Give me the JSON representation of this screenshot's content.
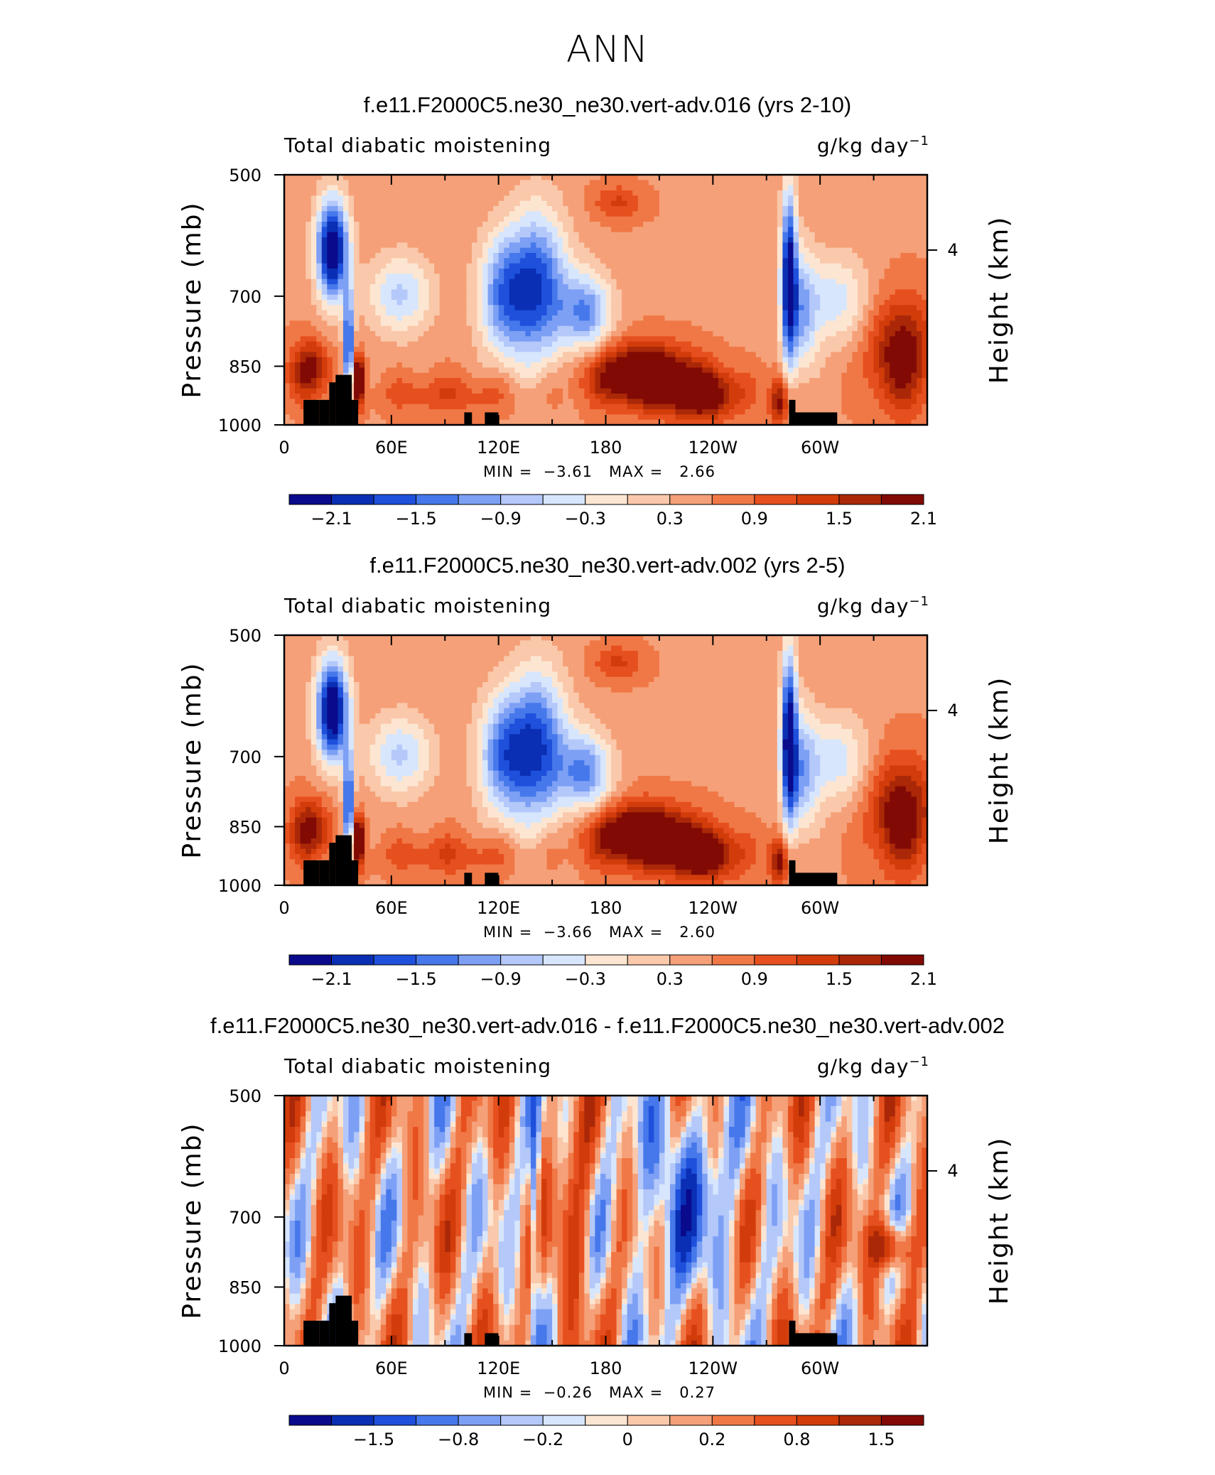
{
  "title": "ANN",
  "chart_data": [
    {
      "type": "heatmap",
      "title": "f.e11.F2000C5.ne30_ne30.vert-adv.016 (yrs 2-10)",
      "left_string": "Total diabatic moistening",
      "units": "g/kg day",
      "units_exp": "−1",
      "ylabel": "Pressure  (mb)",
      "ylabel_right": "Height  (km)",
      "x_ticks": [
        "0",
        "60E",
        "120E",
        "180",
        "120W",
        "60W"
      ],
      "y_ticks": [
        "500",
        "700",
        "850",
        "1000"
      ],
      "y_right_ticks": [
        "4"
      ],
      "min_label": "MIN =",
      "min_value": "−3.61",
      "max_label": "MAX =",
      "max_value": "2.66",
      "colorbar_labels": [
        "−2.1",
        "−1.5",
        "−0.9",
        "−0.3",
        "0.3",
        "0.9",
        "1.5",
        "2.1"
      ],
      "colorbar_colors": [
        "#0a0a8c",
        "#0a2fb4",
        "#1e50dc",
        "#4678eb",
        "#7da0f5",
        "#b4c8fa",
        "#d7e6fc",
        "#fce6d2",
        "#fac8aa",
        "#f5a078",
        "#f07846",
        "#e6501e",
        "#d23c0a",
        "#aa2808",
        "#820a05"
      ]
    },
    {
      "type": "heatmap",
      "title": "f.e11.F2000C5.ne30_ne30.vert-adv.002 (yrs 2-5)",
      "left_string": "Total diabatic moistening",
      "units": "g/kg day",
      "units_exp": "−1",
      "ylabel": "Pressure  (mb)",
      "ylabel_right": "Height  (km)",
      "x_ticks": [
        "0",
        "60E",
        "120E",
        "180",
        "120W",
        "60W"
      ],
      "y_ticks": [
        "500",
        "700",
        "850",
        "1000"
      ],
      "y_right_ticks": [
        "4"
      ],
      "min_label": "MIN =",
      "min_value": "−3.66",
      "max_label": "MAX =",
      "max_value": "2.60",
      "colorbar_labels": [
        "−2.1",
        "−1.5",
        "−0.9",
        "−0.3",
        "0.3",
        "0.9",
        "1.5",
        "2.1"
      ],
      "colorbar_colors": [
        "#0a0a8c",
        "#0a2fb4",
        "#1e50dc",
        "#4678eb",
        "#7da0f5",
        "#b4c8fa",
        "#d7e6fc",
        "#fce6d2",
        "#fac8aa",
        "#f5a078",
        "#f07846",
        "#e6501e",
        "#d23c0a",
        "#aa2808",
        "#820a05"
      ]
    },
    {
      "type": "heatmap",
      "title": "f.e11.F2000C5.ne30_ne30.vert-adv.016 - f.e11.F2000C5.ne30_ne30.vert-adv.002",
      "left_string": "Total diabatic moistening",
      "units": "g/kg day",
      "units_exp": "−1",
      "ylabel": "Pressure  (mb)",
      "ylabel_right": "Height  (km)",
      "x_ticks": [
        "0",
        "60E",
        "120E",
        "180",
        "120W",
        "60W"
      ],
      "y_ticks": [
        "500",
        "700",
        "850",
        "1000"
      ],
      "y_right_ticks": [
        "4"
      ],
      "min_label": "MIN =",
      "min_value": "−0.26",
      "max_label": "MAX =",
      "max_value": "0.27",
      "colorbar_labels": [
        "−1.5",
        "−0.8",
        "−0.2",
        "0",
        "0.2",
        "0.8",
        "1.5"
      ],
      "colorbar_colors": [
        "#0a0a8c",
        "#0a2fb4",
        "#1e50dc",
        "#4678eb",
        "#7da0f5",
        "#b4c8fa",
        "#d7e6fc",
        "#fce6d2",
        "#fac8aa",
        "#f5a078",
        "#f07846",
        "#e6501e",
        "#d23c0a",
        "#aa2808",
        "#820a05"
      ]
    }
  ]
}
